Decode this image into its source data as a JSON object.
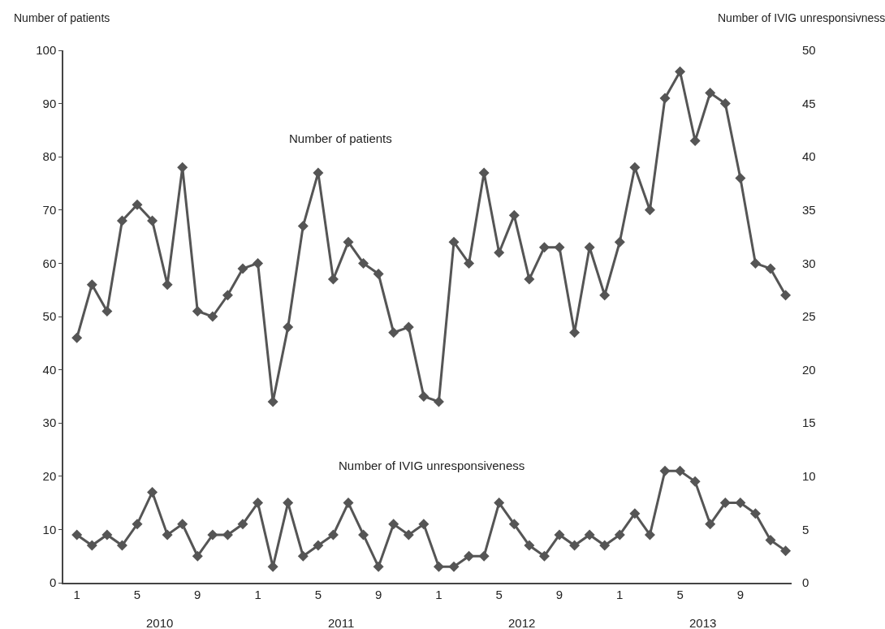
{
  "chart_data": {
    "type": "line",
    "ylabel": "Number of patients",
    "y2label": "Number of IVIG unresponsivness",
    "categories": [
      "1",
      null,
      null,
      null,
      "5",
      null,
      null,
      null,
      "9",
      null,
      null,
      null,
      "1",
      null,
      null,
      null,
      "5",
      null,
      null,
      null,
      "9",
      null,
      null,
      null,
      "1",
      null,
      null,
      null,
      "5",
      null,
      null,
      null,
      "9",
      null,
      null,
      null,
      "1",
      null,
      null,
      null,
      "5",
      null,
      null,
      null,
      "9",
      null,
      null,
      null
    ],
    "series": [
      {
        "name": "Number of patients",
        "color": "#555555",
        "values": [
          46,
          56,
          51,
          68,
          71,
          68,
          56,
          78,
          51,
          50,
          54,
          59,
          60,
          34,
          48,
          67,
          77,
          57,
          64,
          60,
          58,
          47,
          48,
          35,
          34,
          64,
          60,
          77,
          62,
          69,
          57,
          63,
          63,
          47,
          63,
          54,
          64,
          78,
          70,
          91,
          96,
          83,
          92,
          90,
          76,
          60,
          59,
          54
        ]
      },
      {
        "name": "Number of IVIG unresponsiveness",
        "color": "#555555",
        "axis": "y2",
        "values": [
          4.5,
          3.5,
          4.5,
          3.5,
          5.5,
          8.5,
          4.5,
          5.5,
          2.5,
          4.5,
          4.5,
          5.5,
          7.5,
          1.5,
          7.5,
          2.5,
          3.5,
          4.5,
          7.5,
          4.5,
          1.5,
          5.5,
          4.5,
          5.5,
          1.5,
          1.5,
          2.5,
          2.5,
          7.5,
          5.5,
          3.5,
          2.5,
          4.5,
          3.5,
          4.5,
          3.5,
          4.5,
          6.5,
          4.5,
          10.5,
          10.5,
          9.5,
          5.5,
          7.5,
          7.5,
          6.5,
          4,
          3
        ]
      }
    ],
    "annotations": [
      "2010",
      "2011",
      "2012",
      "2013"
    ],
    "ylim": [
      0,
      100
    ],
    "yticks": [
      0,
      10,
      20,
      30,
      40,
      50,
      60,
      70,
      80,
      90,
      100
    ],
    "y2lim": [
      0,
      50
    ],
    "y2ticks": [
      0,
      5,
      10,
      15,
      20,
      25,
      30,
      35,
      40,
      45,
      50
    ],
    "grid": false,
    "legend": false,
    "marker": "diamond",
    "line_style": "solid"
  }
}
